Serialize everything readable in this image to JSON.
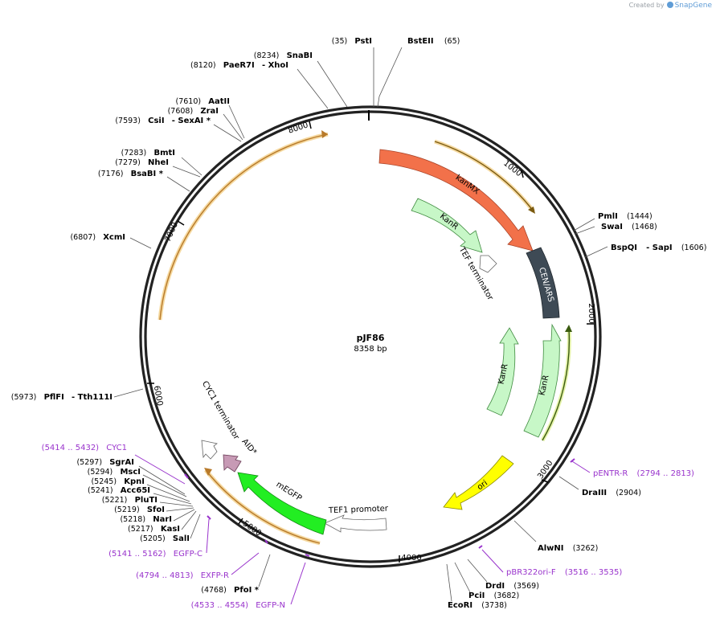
{
  "credit": {
    "prefix": "Created by",
    "brand": "SnapGene"
  },
  "plasmid": {
    "name": "pJF86",
    "size_label": "8358 bp",
    "length": 8358
  },
  "ticks": [
    "1000",
    "2000",
    "3000",
    "4000",
    "5000",
    "6000",
    "7000",
    "8000"
  ],
  "features": [
    {
      "name": "kanMX"
    },
    {
      "name": "KanR"
    },
    {
      "name": "TEF terminator"
    },
    {
      "name": "CEN/ARS"
    },
    {
      "name": "KanR"
    },
    {
      "name": "KanR"
    },
    {
      "name": "ori"
    },
    {
      "name": "TEF1 promoter"
    },
    {
      "name": "mEGFP"
    },
    {
      "name": "AID*"
    },
    {
      "name": "CYC1 terminator"
    }
  ],
  "sites": [
    {
      "pos": "(35)",
      "name": "PstI"
    },
    {
      "pos": "(65)",
      "name": "BstEII"
    },
    {
      "pos": "(8234)",
      "name": "SnaBI"
    },
    {
      "pos": "(8120)",
      "name": "PaeR7I",
      "extra": "- XhoI"
    },
    {
      "pos": "(7610)",
      "name": "AatII"
    },
    {
      "pos": "(7608)",
      "name": "ZraI"
    },
    {
      "pos": "(7593)",
      "name": "CsiI",
      "extra": "- SexAI *"
    },
    {
      "pos": "(7283)",
      "name": "BmtI"
    },
    {
      "pos": "(7279)",
      "name": "NheI"
    },
    {
      "pos": "(7176)",
      "name": "BsaBI *"
    },
    {
      "pos": "(6807)",
      "name": "XcmI"
    },
    {
      "pos": "(5973)",
      "name": "PflFI",
      "extra": "- Tth111I"
    },
    {
      "pos": "(5297)",
      "name": "SgrAI"
    },
    {
      "pos": "(5294)",
      "name": "MscI"
    },
    {
      "pos": "(5245)",
      "name": "KpnI"
    },
    {
      "pos": "(5241)",
      "name": "Acc65I"
    },
    {
      "pos": "(5221)",
      "name": "PluTI"
    },
    {
      "pos": "(5219)",
      "name": "SfoI"
    },
    {
      "pos": "(5218)",
      "name": "NarI"
    },
    {
      "pos": "(5217)",
      "name": "KasI"
    },
    {
      "pos": "(5205)",
      "name": "SalI"
    },
    {
      "pos": "(4768)",
      "name": "PfoI *"
    },
    {
      "pos": "(1444)",
      "name": "PmlI"
    },
    {
      "pos": "(1468)",
      "name": "SwaI"
    },
    {
      "pos": "(1606)",
      "name": "BspQI",
      "extra": "- SapI"
    },
    {
      "pos": "(2904)",
      "name": "DraIII"
    },
    {
      "pos": "(3262)",
      "name": "AlwNI"
    },
    {
      "pos": "(3569)",
      "name": "DrdI"
    },
    {
      "pos": "(3682)",
      "name": "PciI"
    },
    {
      "pos": "(3738)",
      "name": "EcoRI"
    }
  ],
  "primers": [
    {
      "range": "(5414 .. 5432)",
      "name": "CYC1"
    },
    {
      "range": "(5141 .. 5162)",
      "name": "EGFP-C"
    },
    {
      "range": "(4794 .. 4813)",
      "name": "EXFP-R"
    },
    {
      "range": "(4533 .. 4554)",
      "name": "EGFP-N"
    },
    {
      "range": "(2794 .. 2813)",
      "name": "pENTR-R"
    },
    {
      "range": "(3516 .. 3535)",
      "name": "pBR322ori-F"
    }
  ]
}
